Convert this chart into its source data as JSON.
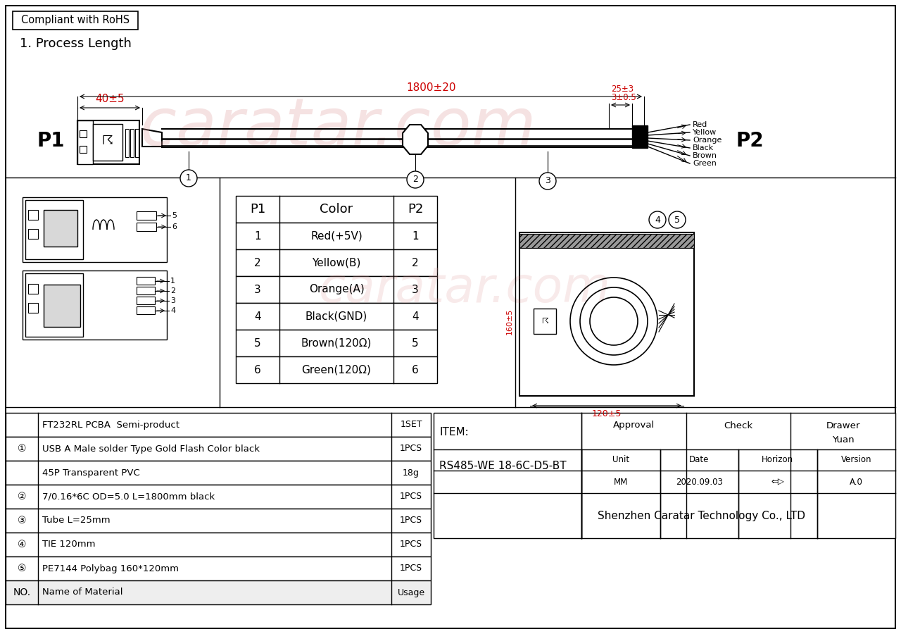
{
  "bg_color": "#ffffff",
  "border_color": "#000000",
  "red_color": "#cc0000",
  "title_rohs": "Compliant with RoHS",
  "section1_title": "1. Process Length",
  "dim_40": "40±5",
  "dim_1800": "1800±20",
  "dim_25": "25±3",
  "dim_3": "3±0.5",
  "label_p1": "P1",
  "label_p2": "P2",
  "wire_colors": [
    "Red",
    "Yellow",
    "Orange",
    "Black",
    "Brown",
    "Green"
  ],
  "table_headers": [
    "P1",
    "Color",
    "P2"
  ],
  "table_rows": [
    [
      "1",
      "Red(+5V)",
      "1"
    ],
    [
      "2",
      "Yellow(B)",
      "2"
    ],
    [
      "3",
      "Orange(A)",
      "3"
    ],
    [
      "4",
      "Black(GND)",
      "4"
    ],
    [
      "5",
      "Brown(120Ω)",
      "5"
    ],
    [
      "6",
      "Green(120Ω)",
      "6"
    ]
  ],
  "bom_rows": [
    [
      "",
      "FT232RL PCBA  Semi-product",
      "1SET"
    ],
    [
      "①",
      "USB A Male solder Type Gold Flash Color black",
      "1PCS"
    ],
    [
      "",
      "45P Transparent PVC",
      "18g"
    ],
    [
      "②",
      "7/0.16*6C OD=5.0 L=1800mm black",
      "1PCS"
    ],
    [
      "③",
      "Tube L=25mm",
      "1PCS"
    ],
    [
      "④",
      "TIE 120mm",
      "1PCS"
    ],
    [
      "⑤",
      "PE7144 Polybag 160*120mm",
      "1PCS"
    ],
    [
      "NO.",
      "Name of Material",
      "Usage"
    ]
  ],
  "info_item": "ITEM:",
  "info_model": "RS485-WE 18-6C-D5-BT",
  "info_unit": "Unit",
  "info_mm": "MM",
  "info_date_label": "Date",
  "info_date": "2020.09.03",
  "info_horizon": "Horizon",
  "info_version": "Version",
  "info_approval": "Approval",
  "info_check": "Check",
  "info_drawer": "Drawer",
  "info_drawer_val": "Yuan",
  "info_version_val": "A.0",
  "info_company": "Shenzhen Caratar Technology Co., LTD",
  "watermark": "caratar.com"
}
